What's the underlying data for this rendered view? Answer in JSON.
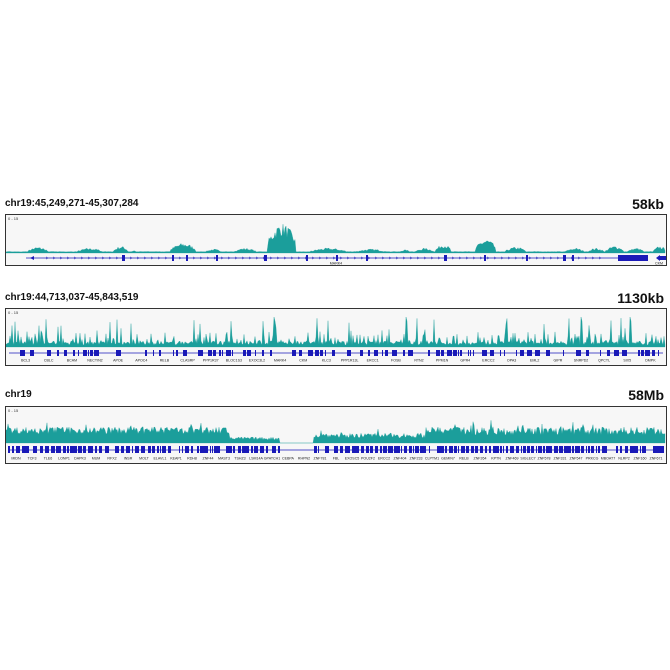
{
  "colors": {
    "signal": "#1b9e9b",
    "gene": "#1a1ab8",
    "frame": "#333333",
    "panel_bg": "#f7f7f7"
  },
  "chart_data": [
    {
      "type": "area",
      "locus": "chr19:45,249,271-45,307,284",
      "scale_label": "58kb",
      "range_label": "0 - 15",
      "ylim": [
        0,
        15
      ],
      "gene_labels": [
        "MARK4"
      ],
      "right_gene_label": "CKM"
    },
    {
      "type": "area",
      "locus": "chr19:44,713,037-45,843,519",
      "scale_label": "1130kb",
      "range_label": "0 - 15",
      "ylim": [
        0,
        15
      ],
      "gene_labels": [
        "BCL3",
        "CBLC",
        "BCAM",
        "NECTIN2",
        "APOE",
        "APOC4",
        "RELB",
        "CLASRP",
        "PPP1R37",
        "BLOC1S3",
        "EXOC3L2",
        "MARK4",
        "CKM",
        "KLC3",
        "PPP1R13L",
        "ERCC1",
        "FOSB",
        "RTN2",
        "PPM1N",
        "GPR4",
        "ERCC2",
        "OPA3",
        "EML2",
        "GIPR",
        "SNRPD2",
        "QPCTL",
        "SIX5",
        "DMPK"
      ]
    },
    {
      "type": "area",
      "locus": "chr19",
      "scale_label": "58Mb",
      "range_label": "0 - 15",
      "ylim": [
        0,
        15
      ],
      "gene_labels": [
        "MIDN",
        "TCF3",
        "TLE6",
        "LONP1",
        "DAPK3",
        "MUM",
        "RFX2",
        "INSR",
        "MOLT",
        "ELAVL1",
        "KEAP1",
        "RDH8",
        "ZNF44",
        "MAST3",
        "TSHZ3",
        "LSM14A",
        "GPATCH1",
        "CEBPA",
        "RHPN2",
        "ZNF781",
        "FBL",
        "EXOSC5",
        "POU2F2",
        "ERCC2",
        "ZNF404",
        "ZNF233",
        "CLPTM1",
        "GEMIN7",
        "RELB",
        "ZNF264",
        "KPTN",
        "ZNF469",
        "SIGLEC7",
        "ZNF578",
        "ZNF331",
        "ZNF547",
        "PRKCG",
        "MBOAT7",
        "NLRP2",
        "ZNF160",
        "ZNF671"
      ]
    }
  ]
}
